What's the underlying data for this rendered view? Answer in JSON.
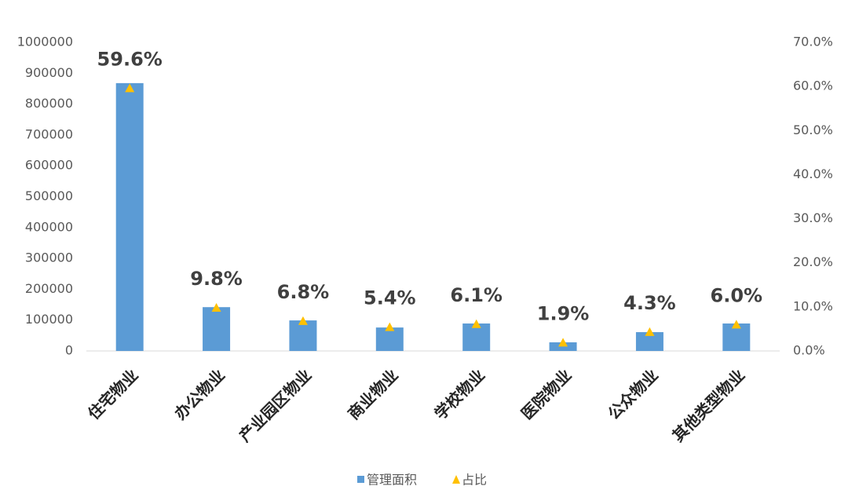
{
  "chart_data": {
    "type": "bar",
    "categories": [
      "住宅物业",
      "办公物业",
      "产业园区物业",
      "商业物业",
      "学校物业",
      "医院物业",
      "公众物业",
      "其他类型物业"
    ],
    "series": [
      {
        "name": "管理面积",
        "color": "#5b9bd5",
        "values": [
          868000,
          142000,
          99000,
          76000,
          89000,
          28000,
          61000,
          89000
        ]
      },
      {
        "name": "占比",
        "color": "#ffc000",
        "axis": "y2",
        "marker": "triangle",
        "values": [
          59.6,
          9.8,
          6.8,
          5.4,
          6.1,
          1.9,
          4.3,
          6.0
        ],
        "value_labels": [
          "59.6%",
          "9.8%",
          "6.8%",
          "5.4%",
          "6.1%",
          "1.9%",
          "4.3%",
          "6.0%"
        ]
      }
    ],
    "ylim": [
      0,
      1000000
    ],
    "yticks": [
      0,
      100000,
      200000,
      300000,
      400000,
      500000,
      600000,
      700000,
      800000,
      900000,
      1000000
    ],
    "y2lim": [
      0,
      70
    ],
    "y2ticks": [
      {
        "value": 0,
        "label": "0.0%"
      },
      {
        "value": 10,
        "label": "10.0%"
      },
      {
        "value": 20,
        "label": "20.0%"
      },
      {
        "value": 30,
        "label": "30.0%"
      },
      {
        "value": 40,
        "label": "40.0%"
      },
      {
        "value": 50,
        "label": "50.0%"
      },
      {
        "value": 60,
        "label": "60.0%"
      },
      {
        "value": 70,
        "label": "70.0%"
      }
    ],
    "grid": false,
    "legend": "bottom"
  }
}
